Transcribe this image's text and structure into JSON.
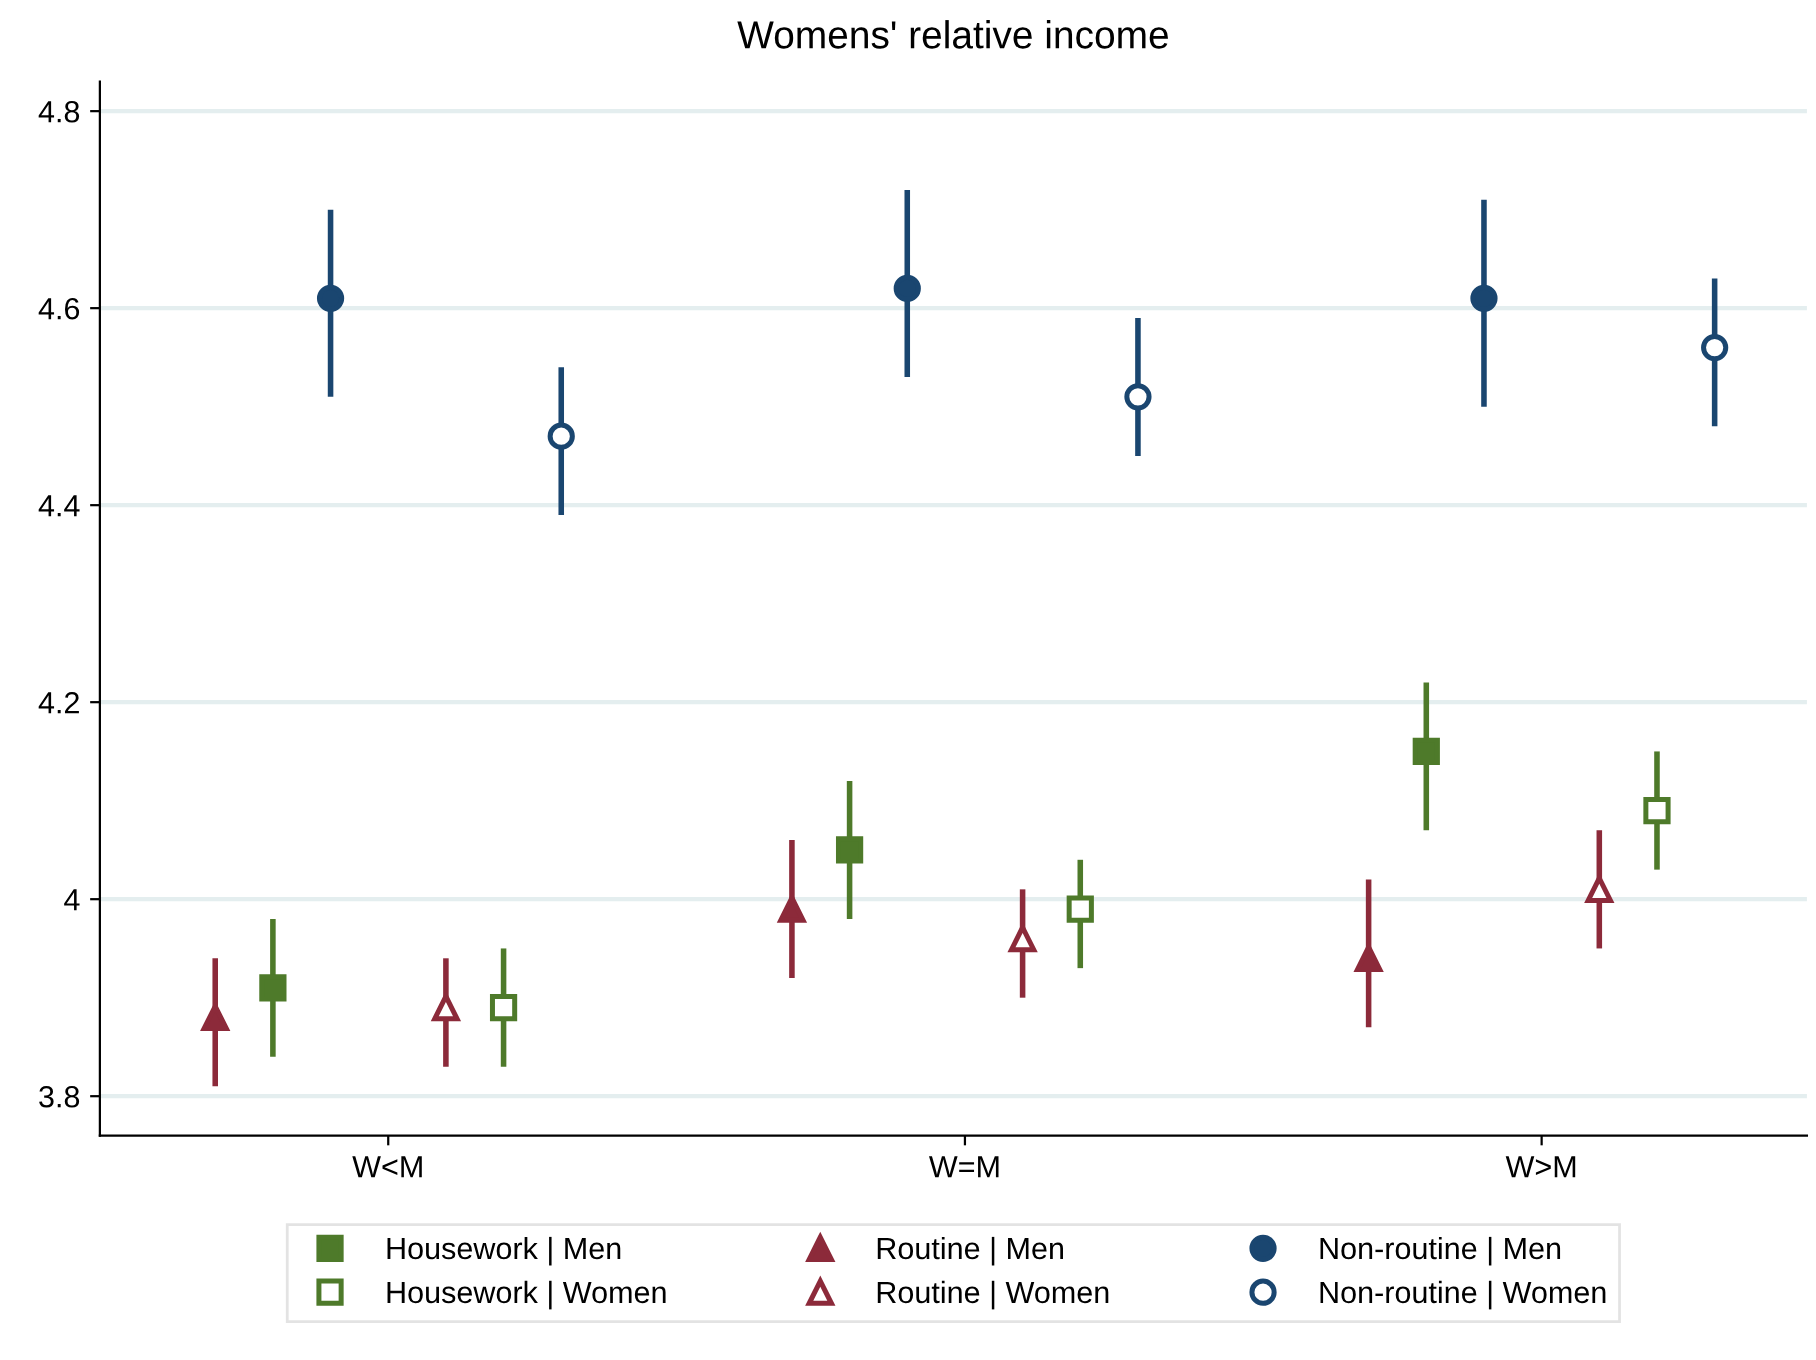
{
  "chart_data": {
    "type": "scatter",
    "title": "Womens' relative income",
    "categories": [
      "W<M",
      "W=M",
      "W>M"
    ],
    "ylim": [
      3.76,
      4.83
    ],
    "yticks": [
      {
        "value": 3.8,
        "label": "3.8"
      },
      {
        "value": 4,
        "label": "4"
      },
      {
        "value": 4.2,
        "label": "4.2"
      },
      {
        "value": 4.4,
        "label": "4.4"
      },
      {
        "value": 4.6,
        "label": "4.6"
      },
      {
        "value": 4.8,
        "label": "4.8"
      }
    ],
    "grid": "y",
    "legend": "bottom",
    "series": [
      {
        "name": "Housework | Men",
        "color": "#4e7a2a",
        "marker": "square",
        "values": [
          3.91,
          4.05,
          4.15
        ],
        "errors": [
          [
            3.84,
            3.98
          ],
          [
            3.98,
            4.12
          ],
          [
            4.07,
            4.22
          ]
        ]
      },
      {
        "name": "Routine | Men",
        "color": "#8c2a3a",
        "marker": "triangle",
        "values": [
          3.88,
          3.99,
          3.94
        ],
        "errors": [
          [
            3.81,
            3.94
          ],
          [
            3.92,
            4.06
          ],
          [
            3.87,
            4.02
          ]
        ]
      },
      {
        "name": "Non-routine | Men",
        "color": "#1a4670",
        "marker": "circle",
        "values": [
          4.61,
          4.62,
          4.61
        ],
        "errors": [
          [
            4.51,
            4.7
          ],
          [
            4.53,
            4.72
          ],
          [
            4.5,
            4.71
          ]
        ]
      },
      {
        "name": "Housework | Women",
        "color": "#4e7a2a",
        "marker": "square",
        "values": [
          3.89,
          3.99,
          4.09
        ],
        "errors": [
          [
            3.83,
            3.95
          ],
          [
            3.93,
            4.04
          ],
          [
            4.03,
            4.15
          ]
        ]
      },
      {
        "name": "Routine | Women",
        "color": "#8c2a3a",
        "marker": "triangle",
        "values": [
          3.89,
          3.96,
          4.01
        ],
        "errors": [
          [
            3.83,
            3.94
          ],
          [
            3.9,
            4.01
          ],
          [
            3.95,
            4.07
          ]
        ]
      },
      {
        "name": "Non-routine | Women",
        "color": "#1a4670",
        "marker": "circle",
        "values": [
          4.47,
          4.51,
          4.56
        ],
        "errors": [
          [
            4.39,
            4.54
          ],
          [
            4.45,
            4.59
          ],
          [
            4.48,
            4.63
          ]
        ]
      }
    ]
  }
}
